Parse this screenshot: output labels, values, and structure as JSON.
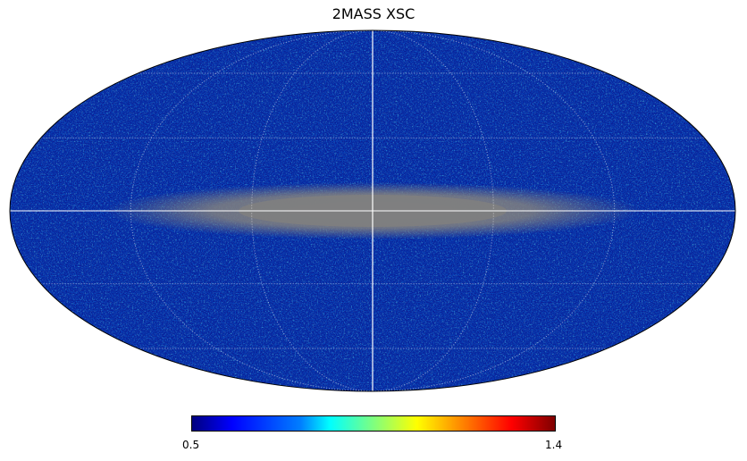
{
  "chart_data": {
    "type": "heatmap",
    "projection": "mollweide",
    "title": "2MASS XSC",
    "colormap": "jet",
    "colorbar": {
      "min": 0.5,
      "max": 1.4,
      "min_label": "0.5",
      "max_label": "1.4"
    },
    "masked_color": "#808080",
    "masked_region": "galactic plane band (|b| small, widest near l = 0)",
    "graticule": {
      "meridian_step_deg": 60,
      "parallel_step_deg": 30,
      "style": "dotted white"
    },
    "axes_lines": [
      "equator",
      "central meridian"
    ],
    "grid": true
  }
}
